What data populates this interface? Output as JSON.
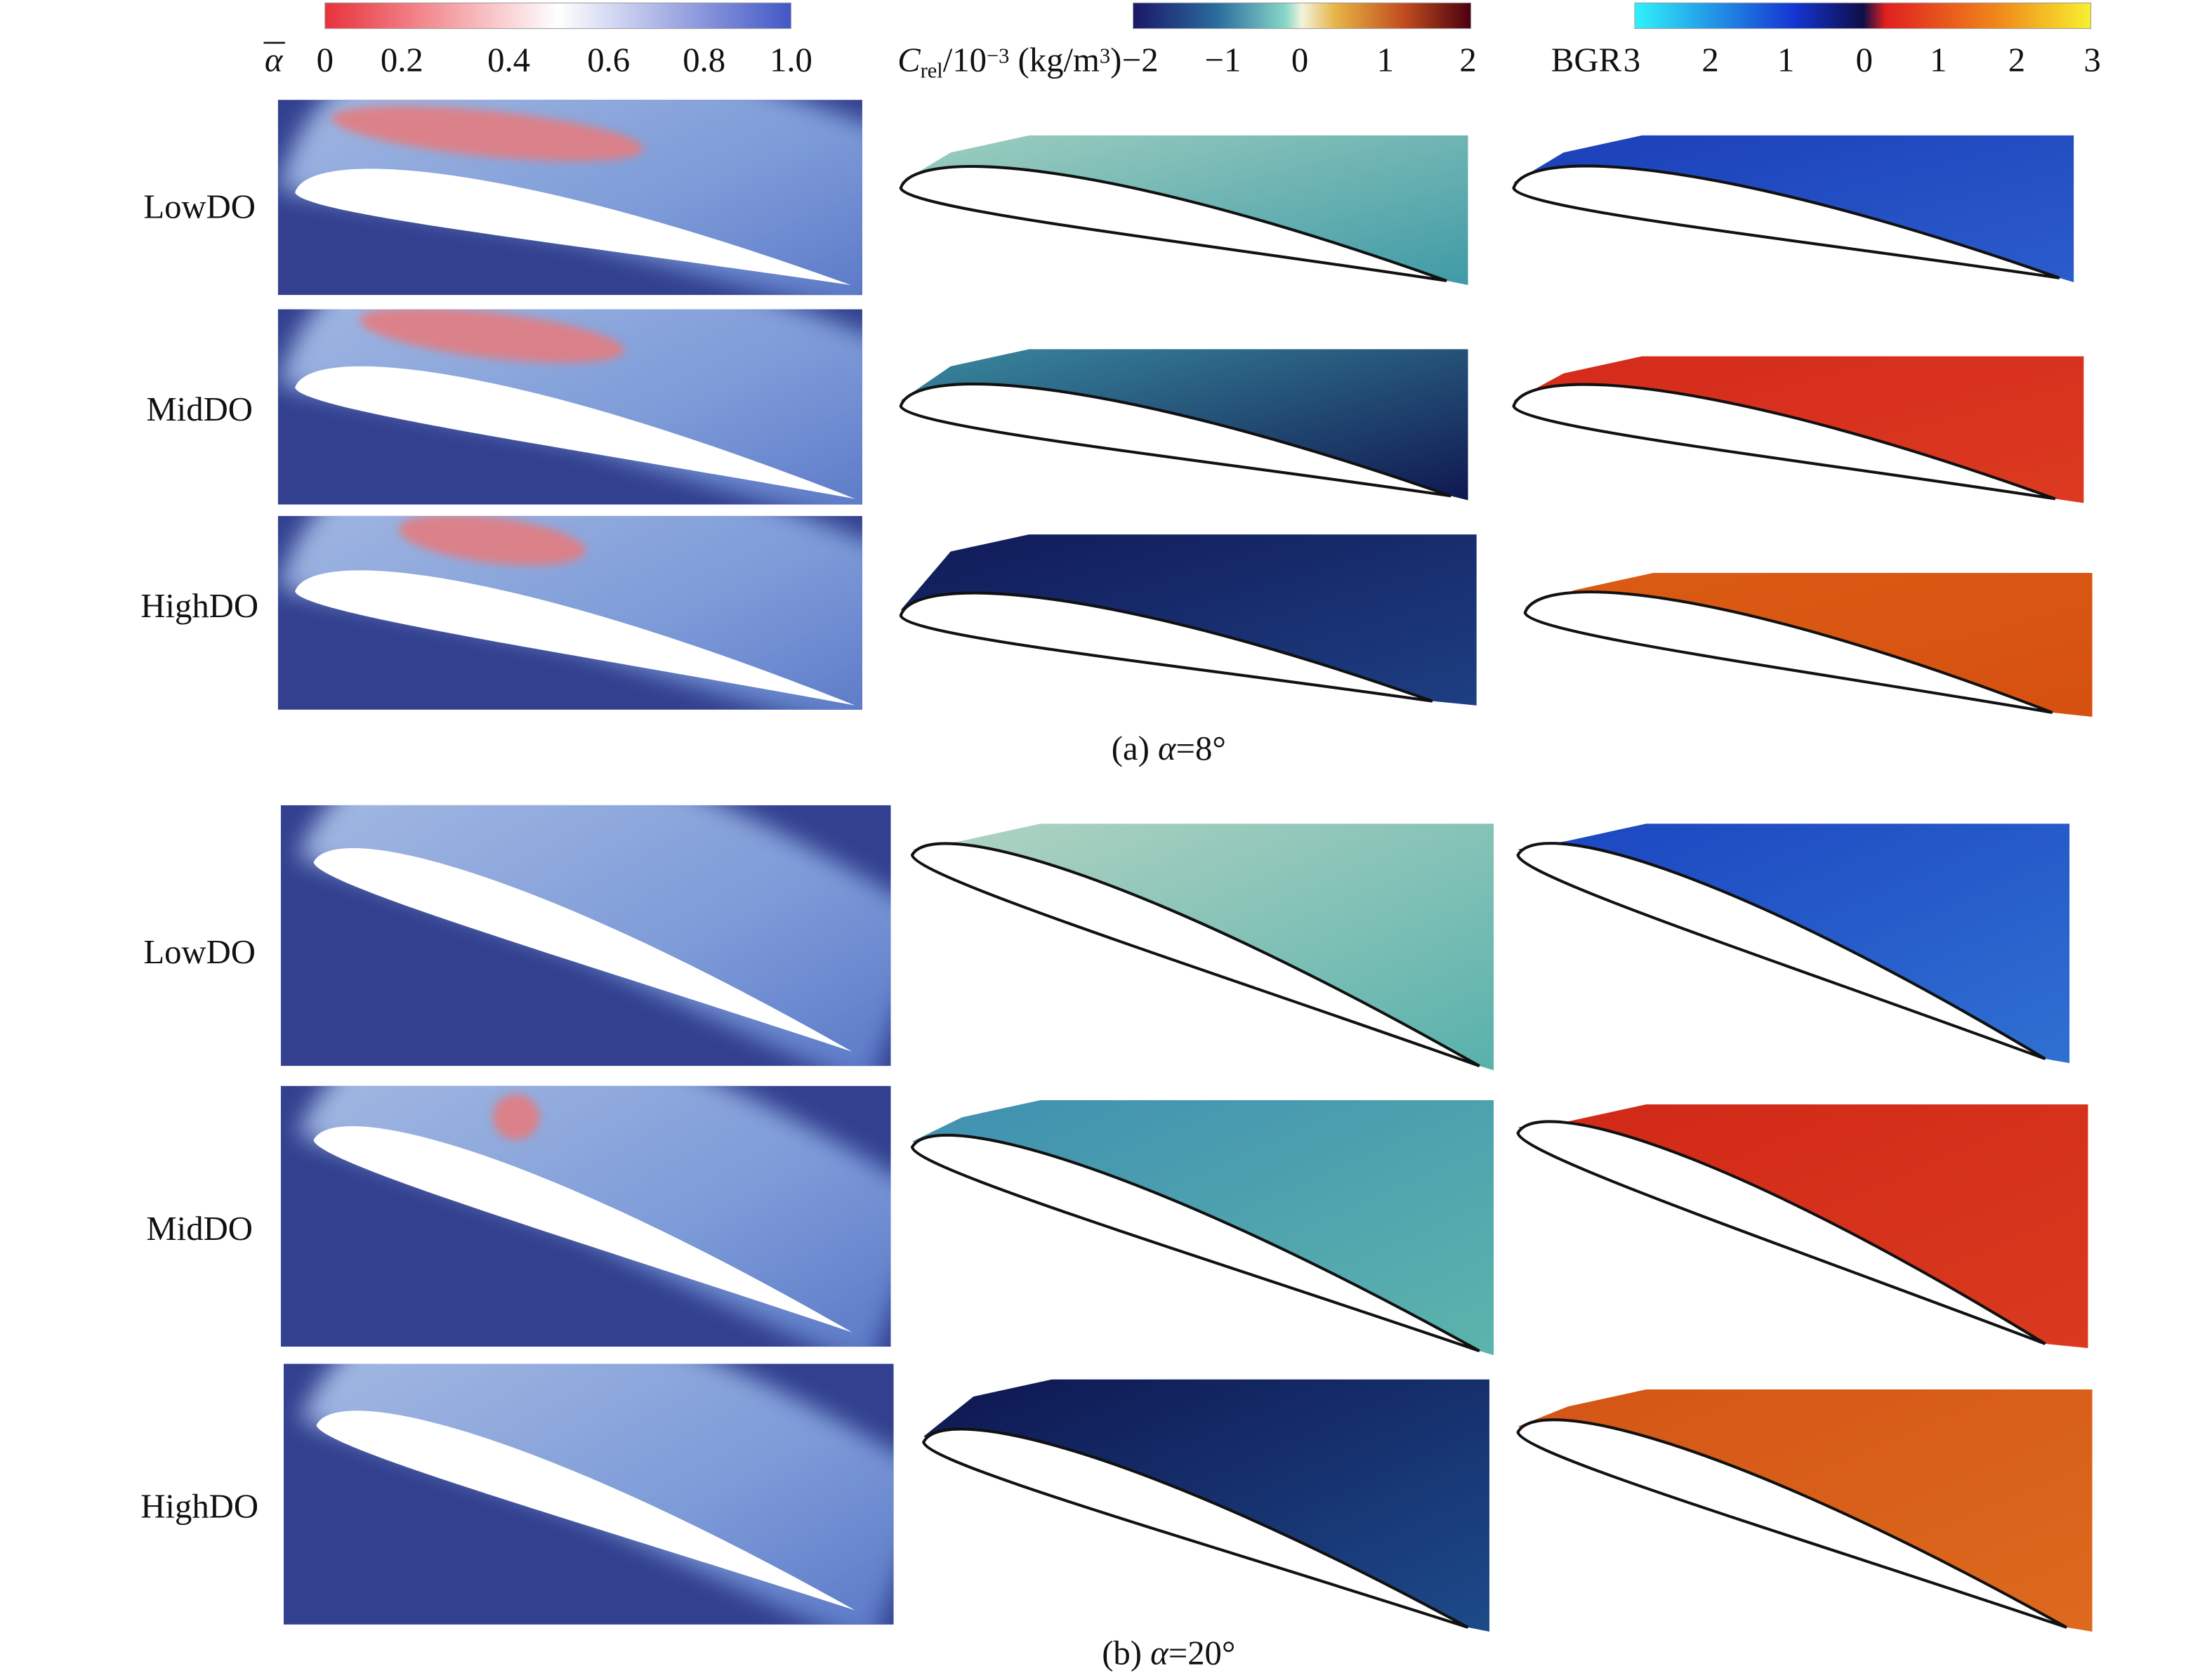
{
  "colorbars": [
    {
      "label": {
        "symbol": "α"
      },
      "ticks": [
        "0",
        "0.2",
        "0.4",
        "0.6",
        "0.8",
        "1.0"
      ]
    },
    {
      "label": {
        "parts": [
          "C",
          "rel",
          "/10",
          "−3",
          " (kg/m",
          "3",
          ")"
        ]
      },
      "ticks": [
        "−2",
        "−1",
        "0",
        "1",
        "2"
      ]
    },
    {
      "label": {
        "text": "BGR"
      },
      "ticks": [
        "3",
        "2",
        "1",
        "0",
        "1",
        "2",
        "3"
      ]
    }
  ],
  "panels": [
    {
      "caption": {
        "prefix": "(a) ",
        "symbol": "α",
        "suffix": "=8°"
      },
      "rows": [
        "LowDO",
        "MidDO",
        "HighDO"
      ]
    },
    {
      "caption": {
        "prefix": "(b) ",
        "symbol": "α",
        "suffix": "=20°"
      },
      "rows": [
        "LowDO",
        "MidDO",
        "HighDO"
      ]
    }
  ]
}
